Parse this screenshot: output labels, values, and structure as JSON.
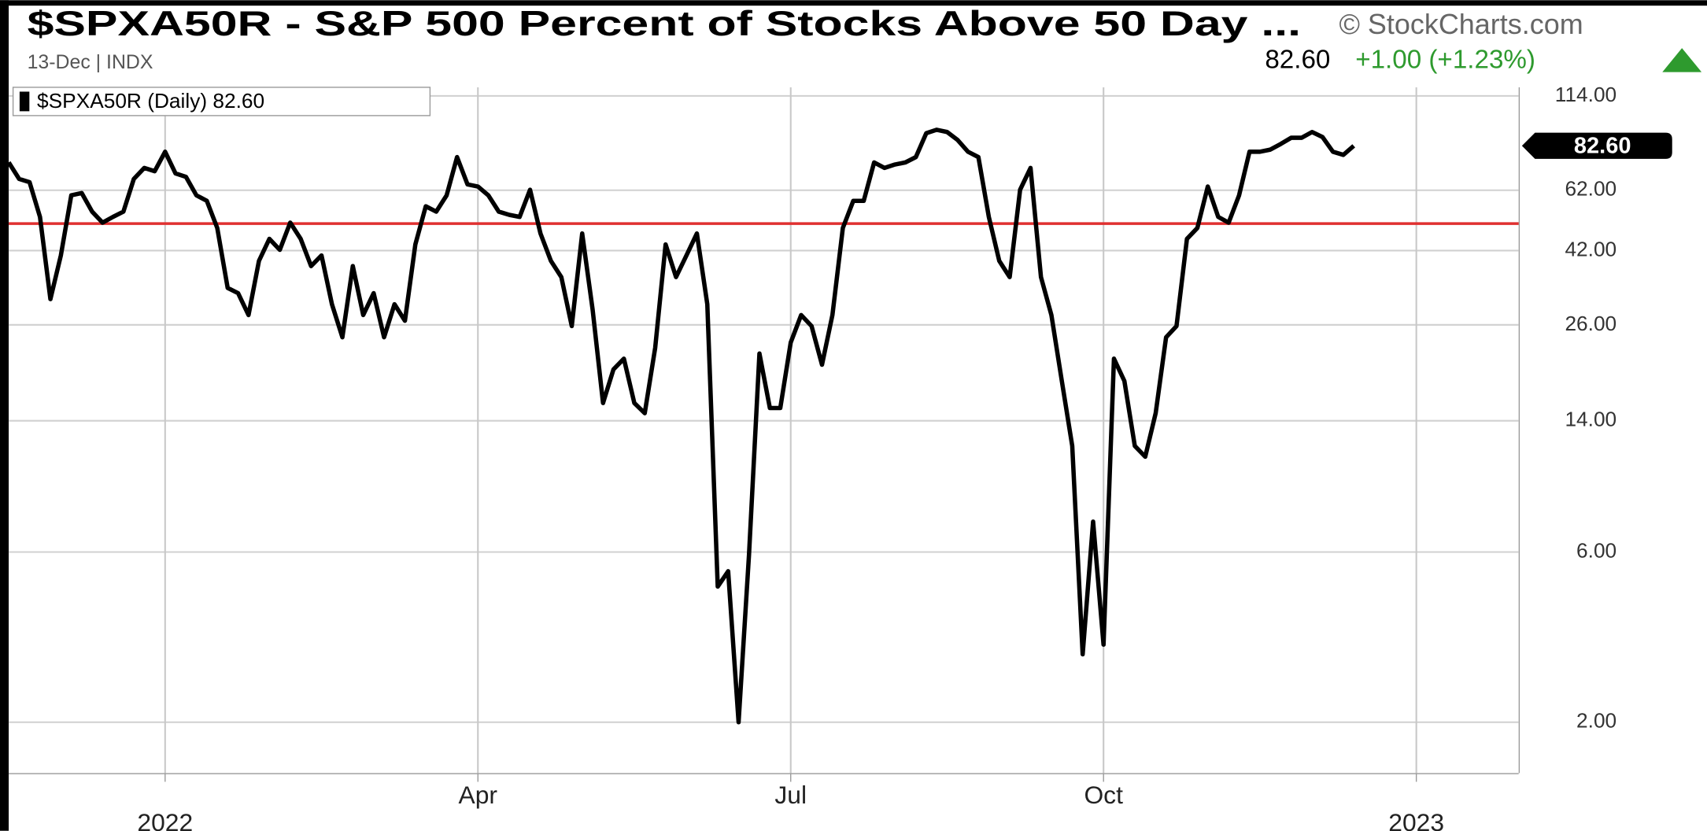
{
  "header": {
    "title": "$SPXA50R - S&P 500 Percent of Stocks Above 50 Day ...",
    "source": "© StockCharts.com",
    "subtitle": "13-Dec | INDX",
    "price": "82.60",
    "change": "+1.00 (+1.23%)"
  },
  "chart_data": {
    "type": "line",
    "legend": "$SPXA50R (Daily) 82.60",
    "last_value_label": "82.60",
    "color": "#000000",
    "log_scale": true,
    "grid": true,
    "categories": [
      null,
      null,
      null,
      null,
      null,
      null,
      null,
      null,
      null,
      null,
      null,
      null,
      null,
      null,
      null,
      "2022",
      null,
      null,
      null,
      null,
      null,
      null,
      null,
      null,
      null,
      null,
      null,
      null,
      null,
      null,
      null,
      null,
      null,
      null,
      null,
      null,
      null,
      null,
      null,
      null,
      null,
      null,
      null,
      null,
      null,
      "Apr",
      null,
      null,
      null,
      null,
      null,
      null,
      null,
      null,
      null,
      null,
      null,
      null,
      null,
      null,
      null,
      null,
      null,
      null,
      null,
      null,
      null,
      null,
      null,
      null,
      null,
      null,
      null,
      null,
      null,
      "Jul",
      null,
      null,
      null,
      null,
      null,
      null,
      null,
      null,
      null,
      null,
      null,
      null,
      null,
      null,
      null,
      null,
      null,
      null,
      null,
      null,
      null,
      null,
      null,
      null,
      null,
      null,
      null,
      null,
      null,
      "Oct",
      null,
      null,
      null,
      null,
      null,
      null,
      null,
      null,
      null,
      null,
      null,
      null,
      null,
      null,
      null,
      null,
      null,
      null,
      null,
      null,
      null,
      null,
      null,
      null,
      null,
      null,
      null,
      null,
      null,
      "2023"
    ],
    "values": [
      74.2,
      66.7,
      65.3,
      52.2,
      30.7,
      40.7,
      60,
      60.9,
      54,
      50.3,
      52.2,
      54,
      66.7,
      71.6,
      70.1,
      79.5,
      69.1,
      67.6,
      60,
      57.9,
      48.6,
      33,
      31.9,
      27.7,
      39.3,
      45.3,
      42.2,
      50.3,
      45.3,
      38,
      40.7,
      29.7,
      24,
      38,
      27.7,
      31.9,
      24,
      29.7,
      26.7,
      43.7,
      55.9,
      54,
      60,
      76.8,
      64.4,
      63.5,
      60,
      54,
      52.9,
      52.2,
      62.2,
      46.9,
      39.3,
      35.4,
      25.8,
      46.9,
      28.7,
      15.7,
      19.5,
      20.9,
      15.7,
      14.7,
      22.4,
      43.7,
      35.4,
      40.7,
      46.9,
      29.7,
      4.8,
      5.3,
      2.0,
      5.9,
      21.6,
      15.2,
      15.2,
      23.2,
      27.7,
      25.8,
      20.1,
      27.7,
      48.6,
      57.9,
      57.9,
      74.2,
      71.6,
      73.2,
      74.2,
      76.8,
      89.6,
      91.6,
      90.3,
      85.8,
      79.5,
      76.8,
      52.2,
      39.3,
      35.4,
      62.2,
      71.6,
      35.4,
      27.7,
      18.1,
      11.9,
      3.1,
      7.3,
      3.3,
      20.9,
      18.1,
      11.9,
      11.1,
      14.7,
      24,
      25.8,
      45.3,
      48.6,
      63.5,
      52.2,
      50.3,
      60,
      79.5,
      79.5,
      80.6,
      83.6,
      87,
      87,
      90.3,
      87.4,
      79.5,
      77.9,
      82.6,
      null,
      null,
      null,
      null,
      null,
      null
    ],
    "ylim": [
      1.44,
      120.5
    ],
    "yticks": [
      {
        "value": 114,
        "label": "114.00"
      },
      {
        "value": 62,
        "label": "62.00"
      },
      {
        "value": 42,
        "label": "42.00"
      },
      {
        "value": 26,
        "label": "26.00"
      },
      {
        "value": 14,
        "label": "14.00"
      },
      {
        "value": 6,
        "label": "6.00"
      },
      {
        "value": 2,
        "label": "2.00"
      }
    ],
    "reference_line": {
      "value": 50,
      "color": "#e03030"
    }
  }
}
